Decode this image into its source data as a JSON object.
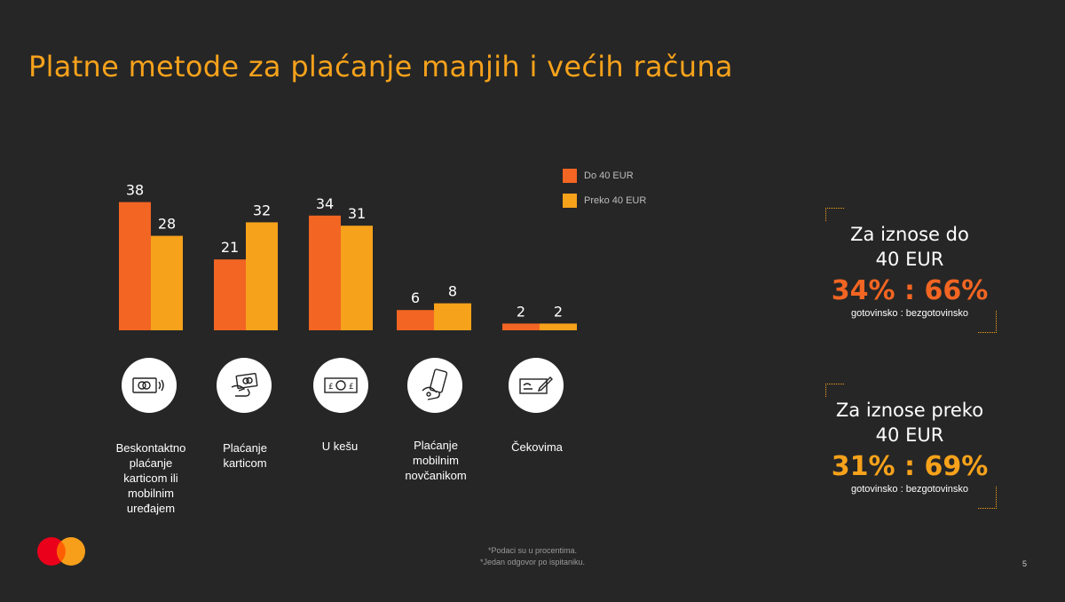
{
  "title": "Platne metode za plaćanje manjih i većih računa",
  "chart_data": {
    "type": "bar",
    "categories": [
      "Beskontaktno plaćanje karticom ili mobilnim uređajem",
      "Plaćanje karticom",
      "U kešu",
      "Plaćanje mobilnim novčanikom",
      "Čekovima"
    ],
    "series": [
      {
        "name": "Do  40 EUR",
        "color": "#f26522",
        "values": [
          38,
          21,
          34,
          6,
          2
        ]
      },
      {
        "name": "Preko 40 EUR",
        "color": "#f7a21b",
        "values": [
          28,
          32,
          31,
          8,
          2
        ]
      }
    ],
    "title": "",
    "xlabel": "",
    "ylabel": "",
    "ylim": [
      0,
      40
    ],
    "grid": false,
    "legend": "top-right"
  },
  "categories_display": [
    {
      "lines": [
        "Beskontaktno",
        "plaćanje",
        "karticom ili",
        "mobilnim",
        "uređajem"
      ],
      "icon": "contactless-card-icon"
    },
    {
      "lines": [
        "Plaćanje",
        "karticom"
      ],
      "icon": "hand-card-icon"
    },
    {
      "lines": [
        "U kešu"
      ],
      "icon": "cash-banknote-icon"
    },
    {
      "lines": [
        "Plaćanje",
        "mobilnim",
        "novčanikom"
      ],
      "icon": "mobile-wallet-icon"
    },
    {
      "lines": [
        "Čekovima"
      ],
      "icon": "cheque-icon"
    }
  ],
  "summary": [
    {
      "title_line1": "Za iznose do",
      "title_line2": "40 EUR",
      "ratio": "34% : 66%",
      "sub": "gotovinsko : bezgotovinsko"
    },
    {
      "title_line1": "Za iznose preko",
      "title_line2": "40 EUR",
      "ratio": "31% : 69%",
      "sub": "gotovinsko : bezgotovinsko"
    }
  ],
  "footnotes": [
    "*Podaci su u procentima.",
    "*Jedan odgovor po ispitaniku."
  ],
  "page_number": "5",
  "colors": {
    "background": "#262626",
    "accent_orange": "#f26522",
    "accent_amber": "#f7a21b",
    "logo_red": "#eb001b",
    "logo_yellow": "#f79e1b"
  }
}
